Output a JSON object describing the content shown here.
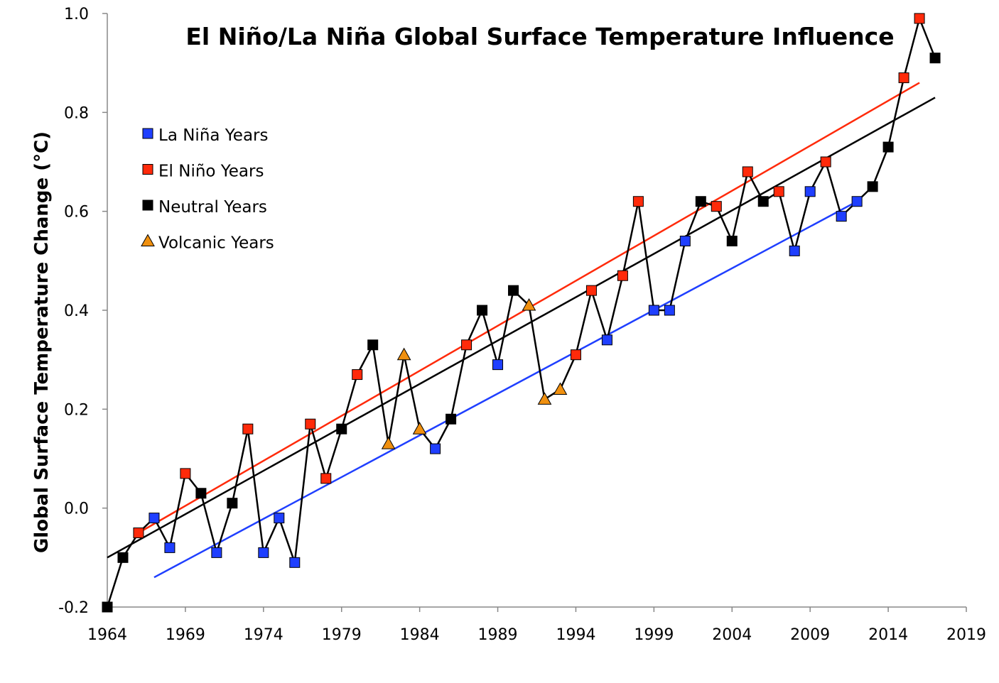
{
  "chart_data": {
    "type": "line",
    "title": "El Niño/La Niña Global Surface Temperature Influence",
    "xlabel": "",
    "ylabel": "Global Surface Temperature Change (°C)",
    "xlim": [
      1964,
      2019
    ],
    "ylim": [
      -0.2,
      1.0
    ],
    "x_ticks": [
      1964,
      1969,
      1974,
      1979,
      1984,
      1989,
      1994,
      1999,
      2004,
      2009,
      2014,
      2019
    ],
    "y_ticks": [
      "-0.2",
      "0.0",
      "0.2",
      "0.4",
      "0.6",
      "0.8",
      "1.0"
    ],
    "grid": false,
    "legend_placement": "top-left",
    "colors": {
      "la_nina": "#1f3fff",
      "el_nino": "#ff2a0a",
      "neutral": "#000000",
      "volcanic": "#f0900f",
      "connector": "#000000"
    },
    "legend": [
      {
        "key": "la_nina",
        "label": "La Niña Years",
        "marker": "square"
      },
      {
        "key": "el_nino",
        "label": "El Niño Years",
        "marker": "square"
      },
      {
        "key": "neutral",
        "label": "Neutral Years",
        "marker": "square"
      },
      {
        "key": "volcanic",
        "label": "Volcanic Years",
        "marker": "triangle"
      }
    ],
    "points": [
      {
        "year": 1964,
        "value": -0.2,
        "type": "neutral"
      },
      {
        "year": 1965,
        "value": -0.1,
        "type": "neutral"
      },
      {
        "year": 1966,
        "value": -0.05,
        "type": "el_nino"
      },
      {
        "year": 1967,
        "value": -0.02,
        "type": "la_nina"
      },
      {
        "year": 1968,
        "value": -0.08,
        "type": "la_nina"
      },
      {
        "year": 1969,
        "value": 0.07,
        "type": "el_nino"
      },
      {
        "year": 1970,
        "value": 0.03,
        "type": "neutral"
      },
      {
        "year": 1971,
        "value": -0.09,
        "type": "la_nina"
      },
      {
        "year": 1972,
        "value": 0.01,
        "type": "neutral"
      },
      {
        "year": 1973,
        "value": 0.16,
        "type": "el_nino"
      },
      {
        "year": 1974,
        "value": -0.09,
        "type": "la_nina"
      },
      {
        "year": 1975,
        "value": -0.02,
        "type": "la_nina"
      },
      {
        "year": 1976,
        "value": -0.11,
        "type": "la_nina"
      },
      {
        "year": 1977,
        "value": 0.17,
        "type": "el_nino"
      },
      {
        "year": 1978,
        "value": 0.06,
        "type": "el_nino"
      },
      {
        "year": 1979,
        "value": 0.16,
        "type": "neutral"
      },
      {
        "year": 1980,
        "value": 0.27,
        "type": "el_nino"
      },
      {
        "year": 1981,
        "value": 0.33,
        "type": "neutral"
      },
      {
        "year": 1982,
        "value": 0.13,
        "type": "volcanic"
      },
      {
        "year": 1983,
        "value": 0.31,
        "type": "volcanic"
      },
      {
        "year": 1984,
        "value": 0.16,
        "type": "volcanic"
      },
      {
        "year": 1985,
        "value": 0.12,
        "type": "la_nina"
      },
      {
        "year": 1986,
        "value": 0.18,
        "type": "neutral"
      },
      {
        "year": 1987,
        "value": 0.33,
        "type": "el_nino"
      },
      {
        "year": 1988,
        "value": 0.4,
        "type": "neutral"
      },
      {
        "year": 1989,
        "value": 0.29,
        "type": "la_nina"
      },
      {
        "year": 1990,
        "value": 0.44,
        "type": "neutral"
      },
      {
        "year": 1991,
        "value": 0.41,
        "type": "volcanic"
      },
      {
        "year": 1992,
        "value": 0.22,
        "type": "volcanic"
      },
      {
        "year": 1993,
        "value": 0.24,
        "type": "volcanic"
      },
      {
        "year": 1994,
        "value": 0.31,
        "type": "el_nino"
      },
      {
        "year": 1995,
        "value": 0.44,
        "type": "el_nino"
      },
      {
        "year": 1996,
        "value": 0.34,
        "type": "la_nina"
      },
      {
        "year": 1997,
        "value": 0.47,
        "type": "el_nino"
      },
      {
        "year": 1998,
        "value": 0.62,
        "type": "el_nino"
      },
      {
        "year": 1999,
        "value": 0.4,
        "type": "la_nina"
      },
      {
        "year": 2000,
        "value": 0.4,
        "type": "la_nina"
      },
      {
        "year": 2001,
        "value": 0.54,
        "type": "la_nina"
      },
      {
        "year": 2002,
        "value": 0.62,
        "type": "neutral"
      },
      {
        "year": 2003,
        "value": 0.61,
        "type": "el_nino"
      },
      {
        "year": 2004,
        "value": 0.54,
        "type": "neutral"
      },
      {
        "year": 2005,
        "value": 0.68,
        "type": "el_nino"
      },
      {
        "year": 2006,
        "value": 0.62,
        "type": "neutral"
      },
      {
        "year": 2007,
        "value": 0.64,
        "type": "el_nino"
      },
      {
        "year": 2008,
        "value": 0.52,
        "type": "la_nina"
      },
      {
        "year": 2009,
        "value": 0.64,
        "type": "la_nina"
      },
      {
        "year": 2010,
        "value": 0.7,
        "type": "el_nino"
      },
      {
        "year": 2011,
        "value": 0.59,
        "type": "la_nina"
      },
      {
        "year": 2012,
        "value": 0.62,
        "type": "la_nina"
      },
      {
        "year": 2013,
        "value": 0.65,
        "type": "neutral"
      },
      {
        "year": 2014,
        "value": 0.73,
        "type": "neutral"
      },
      {
        "year": 2015,
        "value": 0.87,
        "type": "el_nino"
      },
      {
        "year": 2016,
        "value": 0.99,
        "type": "el_nino"
      },
      {
        "year": 2017,
        "value": 0.91,
        "type": "neutral"
      }
    ],
    "trendlines": [
      {
        "key": "el_nino",
        "from": [
          1966,
          -0.05
        ],
        "to": [
          2016,
          0.86
        ]
      },
      {
        "key": "neutral",
        "from": [
          1964,
          -0.1
        ],
        "to": [
          2017,
          0.83
        ]
      },
      {
        "key": "la_nina",
        "from": [
          1967,
          -0.14
        ],
        "to": [
          2012,
          0.62
        ]
      }
    ]
  }
}
